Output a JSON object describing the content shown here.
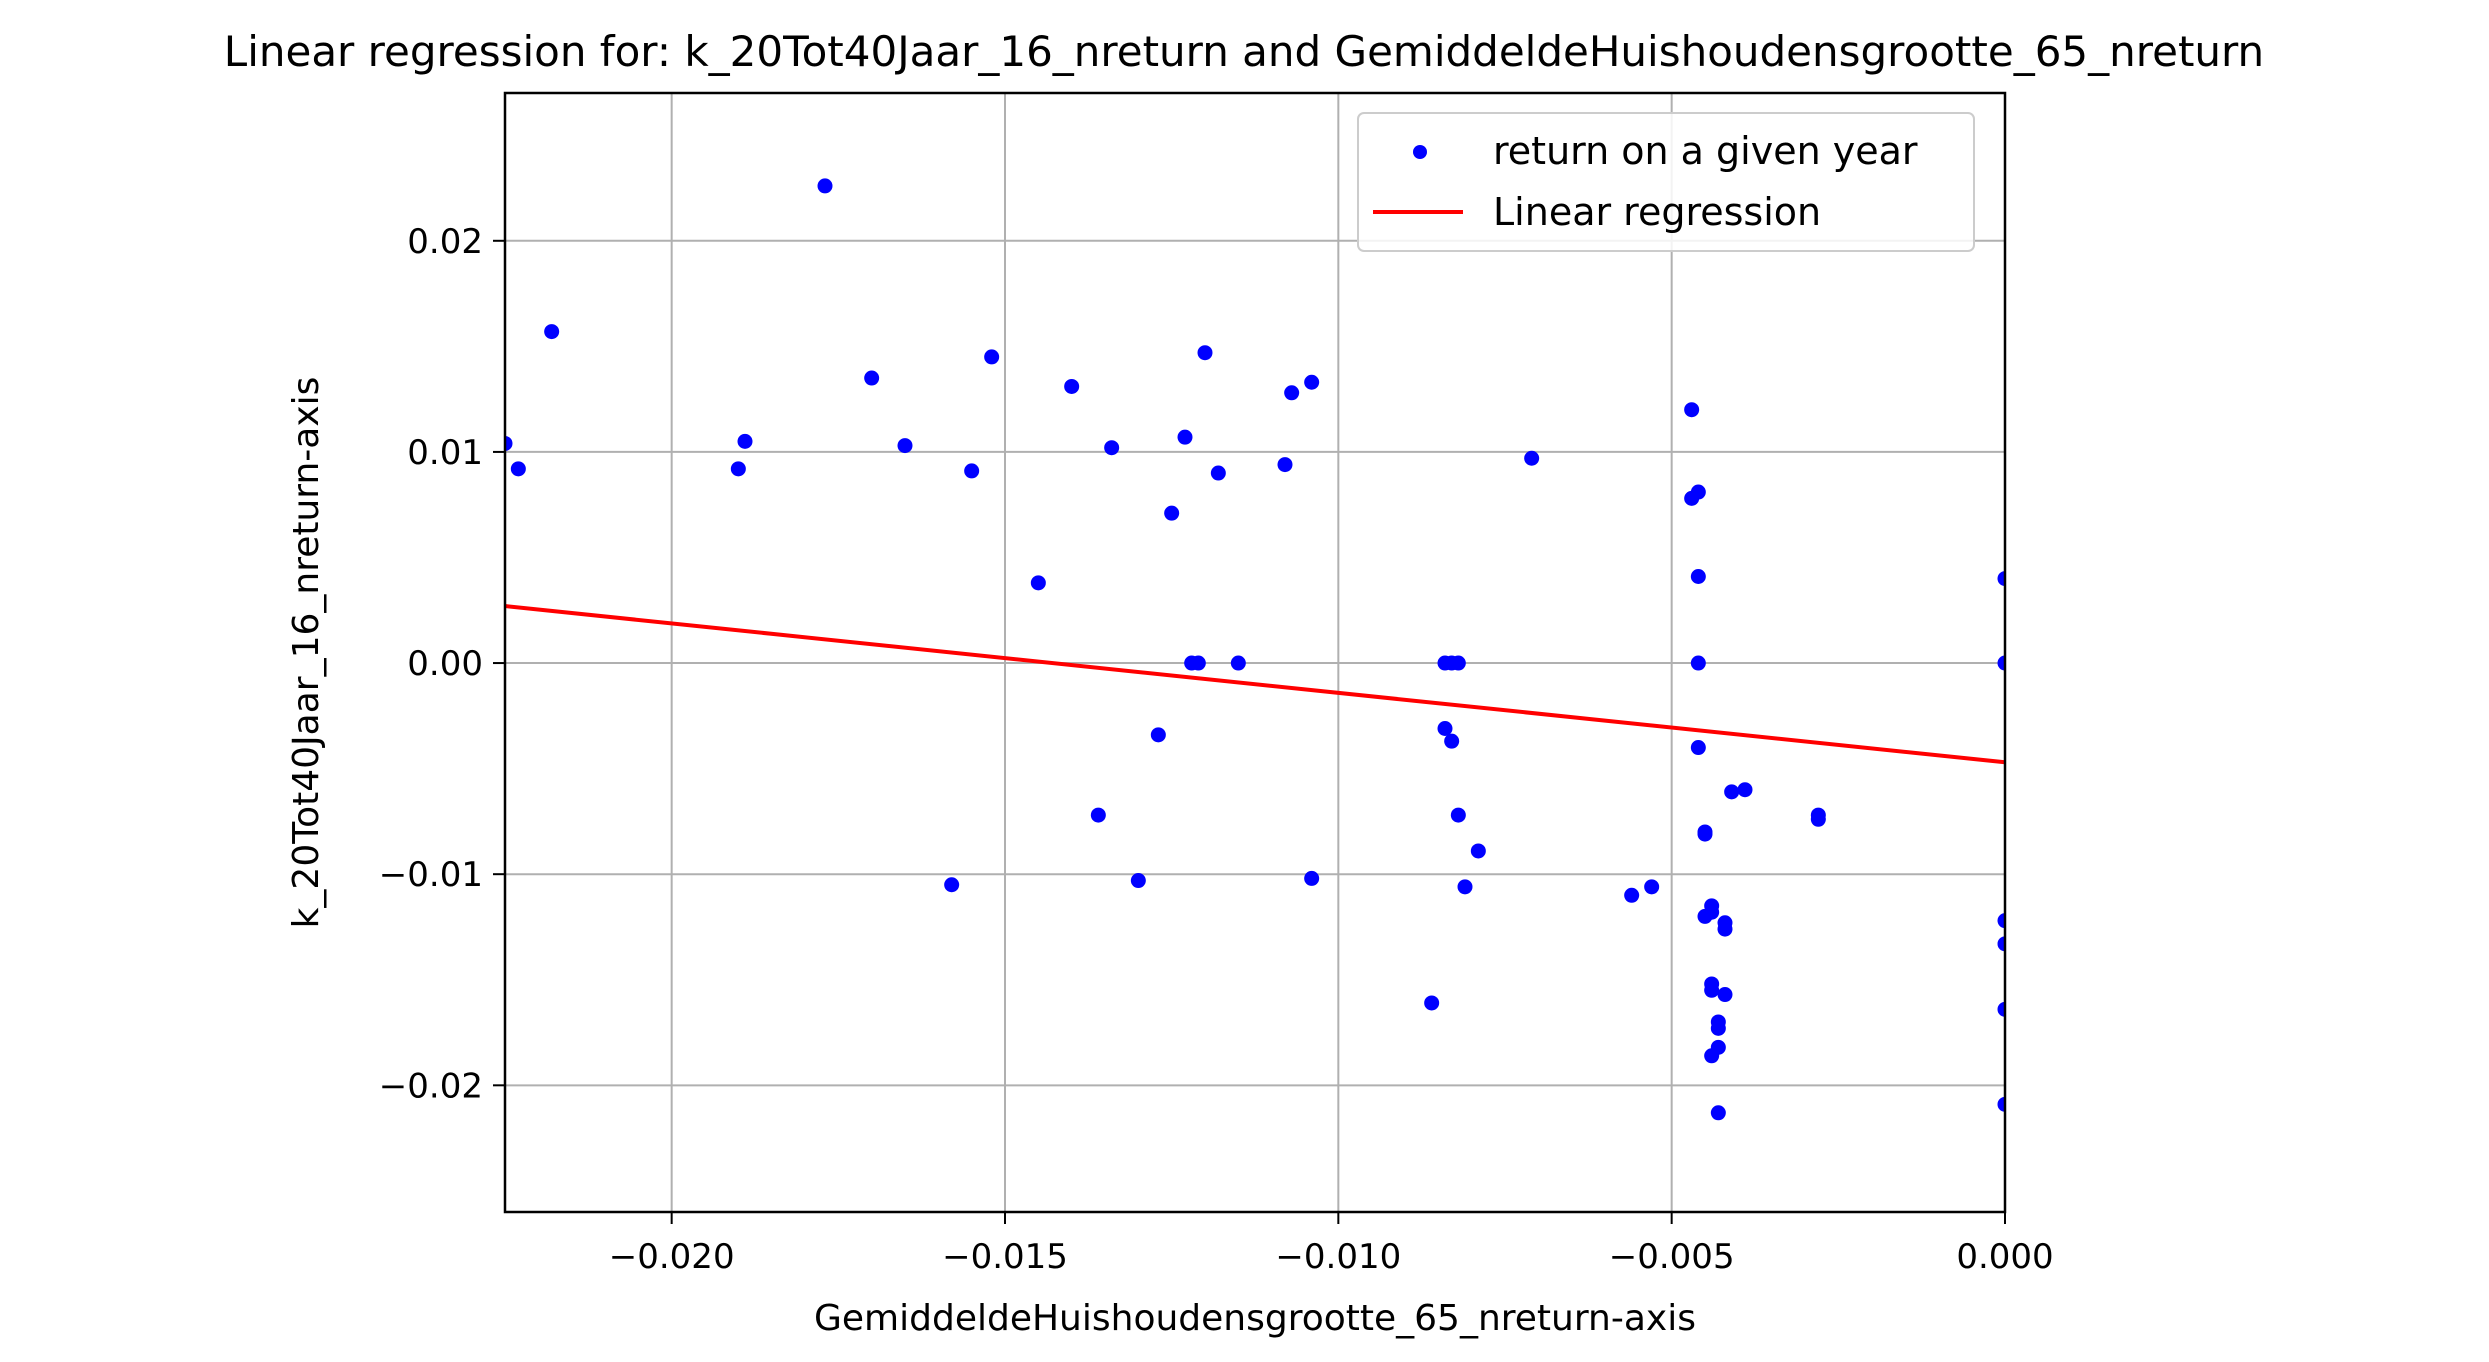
{
  "chart_data": {
    "type": "scatter",
    "title": "Linear regression for: k_20Tot40Jaar_16_nreturn and GemiddeldeHuishoudensgrootte_65_nreturn",
    "xlabel": "GemiddeldeHuishoudensgrootte_65_nreturn-axis",
    "ylabel": "k_20Tot40Jaar_16_nreturn-axis",
    "xlim": [
      -0.0225,
      0.0
    ],
    "ylim": [
      -0.026,
      0.027
    ],
    "x_ticks": [
      -0.02,
      -0.015,
      -0.01,
      -0.005,
      0.0
    ],
    "x_tick_labels": [
      "−0.020",
      "−0.015",
      "−0.010",
      "−0.005",
      "0.000"
    ],
    "y_ticks": [
      -0.02,
      -0.01,
      0.0,
      0.01,
      0.02
    ],
    "y_tick_labels": [
      "−0.02",
      "−0.01",
      "0.00",
      "0.01",
      "0.02"
    ],
    "grid": true,
    "legend_position": "top-right",
    "series": [
      {
        "name": "return on a given year",
        "kind": "scatter",
        "color": "#0000ff",
        "points": [
          [
            -0.0225,
            0.0104
          ],
          [
            -0.0223,
            0.0092
          ],
          [
            -0.0218,
            0.0157
          ],
          [
            -0.019,
            0.0092
          ],
          [
            -0.0189,
            0.0105
          ],
          [
            -0.0177,
            0.0226
          ],
          [
            -0.017,
            0.0135
          ],
          [
            -0.0165,
            0.0103
          ],
          [
            -0.0158,
            -0.0105
          ],
          [
            -0.0155,
            0.0091
          ],
          [
            -0.0152,
            0.0145
          ],
          [
            -0.0145,
            0.0038
          ],
          [
            -0.014,
            0.0131
          ],
          [
            -0.0136,
            -0.0072
          ],
          [
            -0.0134,
            0.0102
          ],
          [
            -0.013,
            -0.0103
          ],
          [
            -0.0127,
            -0.0034
          ],
          [
            -0.0125,
            0.0071
          ],
          [
            -0.0123,
            0.0107
          ],
          [
            -0.0122,
            0.0
          ],
          [
            -0.0121,
            0.0
          ],
          [
            -0.012,
            0.0147
          ],
          [
            -0.0118,
            0.009
          ],
          [
            -0.0115,
            0.0
          ],
          [
            -0.0108,
            0.0094
          ],
          [
            -0.0107,
            0.0128
          ],
          [
            -0.0104,
            0.0133
          ],
          [
            -0.0104,
            -0.0102
          ],
          [
            -0.0086,
            -0.0161
          ],
          [
            -0.0084,
            0.0
          ],
          [
            -0.0084,
            -0.0031
          ],
          [
            -0.0083,
            -0.0037
          ],
          [
            -0.0083,
            0.0
          ],
          [
            -0.0082,
            0.0
          ],
          [
            -0.0082,
            -0.0072
          ],
          [
            -0.0081,
            -0.0106
          ],
          [
            -0.0079,
            -0.0089
          ],
          [
            -0.0071,
            0.0097
          ],
          [
            -0.0056,
            -0.011
          ],
          [
            -0.0053,
            -0.0106
          ],
          [
            -0.0047,
            0.012
          ],
          [
            -0.0047,
            0.0078
          ],
          [
            -0.0046,
            0.0081
          ],
          [
            -0.0046,
            0.0041
          ],
          [
            -0.0046,
            0.0
          ],
          [
            -0.0046,
            -0.004
          ],
          [
            -0.0045,
            -0.0081
          ],
          [
            -0.0045,
            -0.008
          ],
          [
            -0.0045,
            -0.012
          ],
          [
            -0.0044,
            -0.0115
          ],
          [
            -0.0044,
            -0.0118
          ],
          [
            -0.0044,
            -0.0155
          ],
          [
            -0.0044,
            -0.0152
          ],
          [
            -0.0044,
            -0.0186
          ],
          [
            -0.0043,
            -0.0182
          ],
          [
            -0.0043,
            -0.017
          ],
          [
            -0.0043,
            -0.0173
          ],
          [
            -0.0043,
            -0.0213
          ],
          [
            -0.0042,
            -0.0126
          ],
          [
            -0.0042,
            -0.0123
          ],
          [
            -0.0042,
            -0.0157
          ],
          [
            -0.0041,
            -0.0061
          ],
          [
            -0.0039,
            -0.006
          ],
          [
            -0.0028,
            -0.0074
          ],
          [
            -0.0028,
            -0.0072
          ],
          [
            0.0,
            0.004
          ],
          [
            0.0,
            0.0
          ],
          [
            0.0,
            -0.0122
          ],
          [
            0.0,
            -0.0133
          ],
          [
            0.0,
            -0.0164
          ],
          [
            0.0,
            -0.0209
          ]
        ]
      },
      {
        "name": "Linear regression",
        "kind": "line",
        "color": "#ff0000",
        "points": [
          [
            -0.0225,
            0.0027
          ],
          [
            0.0,
            -0.0047
          ]
        ]
      }
    ]
  }
}
